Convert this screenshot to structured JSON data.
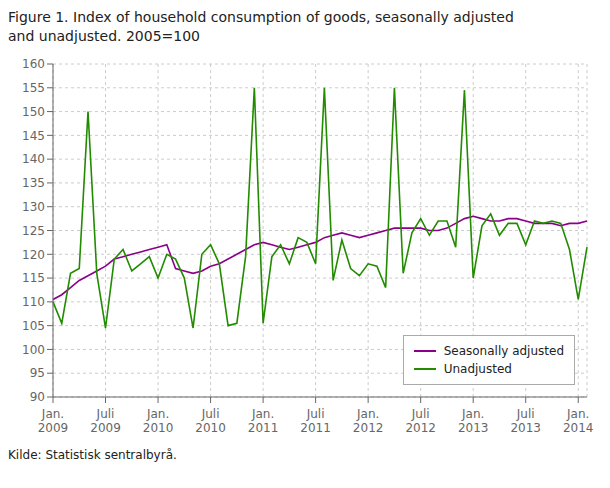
{
  "chart_data": {
    "type": "line",
    "title": "Figure 1. Index of household consumption of goods, seasonally adjusted\nand unadjusted. 2005=100",
    "annotations": [
      "Kilde: Statistisk sentralbyrå."
    ],
    "categories": [
      "Jan.\n2009",
      null,
      null,
      null,
      null,
      null,
      "Juli\n2009",
      null,
      null,
      null,
      null,
      null,
      "Jan.\n2010",
      null,
      null,
      null,
      null,
      null,
      "Juli\n2010",
      null,
      null,
      null,
      null,
      null,
      "Jan.\n2011",
      null,
      null,
      null,
      null,
      null,
      "Juli\n2011",
      null,
      null,
      null,
      null,
      null,
      "Jan.\n2012",
      null,
      null,
      null,
      null,
      null,
      "Juli\n2012",
      null,
      null,
      null,
      null,
      null,
      "Jan.\n2013",
      null,
      null,
      null,
      null,
      null,
      "Juli\n2013",
      null,
      null,
      null,
      null,
      null,
      "Jan.\n2014",
      null
    ],
    "series": [
      {
        "name": "Seasonally adjusted",
        "color": "#8B008B",
        "values": [
          110.5,
          111.5,
          113.0,
          114.5,
          115.5,
          116.5,
          117.5,
          119.0,
          119.5,
          120.0,
          120.5,
          121.0,
          121.5,
          122.0,
          117.0,
          116.5,
          116.0,
          116.5,
          117.5,
          118.0,
          119.0,
          120.0,
          121.0,
          122.0,
          122.5,
          122.0,
          121.5,
          121.0,
          121.5,
          122.0,
          122.5,
          123.5,
          124.0,
          124.5,
          124.0,
          123.5,
          124.0,
          124.5,
          125.0,
          125.5,
          125.5,
          125.5,
          125.5,
          125.0,
          125.0,
          125.5,
          126.5,
          127.5,
          128.0,
          127.5,
          127.0,
          127.0,
          127.5,
          127.5,
          127.0,
          126.5,
          126.5,
          126.5,
          126.0,
          126.5,
          126.5,
          127.0
        ]
      },
      {
        "name": "Unadjusted",
        "color": "#228B00",
        "values": [
          110.0,
          105.5,
          116.0,
          117.0,
          150.0,
          116.0,
          104.5,
          119.0,
          121.0,
          116.5,
          118.0,
          119.5,
          115.0,
          120.0,
          119.0,
          115.0,
          104.5,
          120.0,
          122.0,
          118.0,
          105.0,
          105.5,
          119.5,
          155.0,
          105.5,
          119.5,
          122.0,
          118.0,
          123.5,
          122.5,
          118.0,
          155.0,
          114.5,
          123.0,
          117.0,
          115.5,
          118.0,
          117.5,
          113.0,
          155.0,
          116.0,
          124.5,
          127.5,
          124.0,
          127.0,
          127.0,
          121.5,
          154.5,
          115.0,
          126.0,
          128.5,
          124.0,
          126.5,
          126.5,
          122.0,
          127.0,
          126.5,
          127.0,
          126.5,
          121.0,
          110.5,
          121.5
        ]
      }
    ],
    "ylim": [
      90,
      160
    ],
    "yticks": [
      90,
      95,
      100,
      105,
      110,
      115,
      120,
      125,
      130,
      135,
      140,
      145,
      150,
      155,
      160
    ],
    "grid": true,
    "legend": "lower right"
  }
}
